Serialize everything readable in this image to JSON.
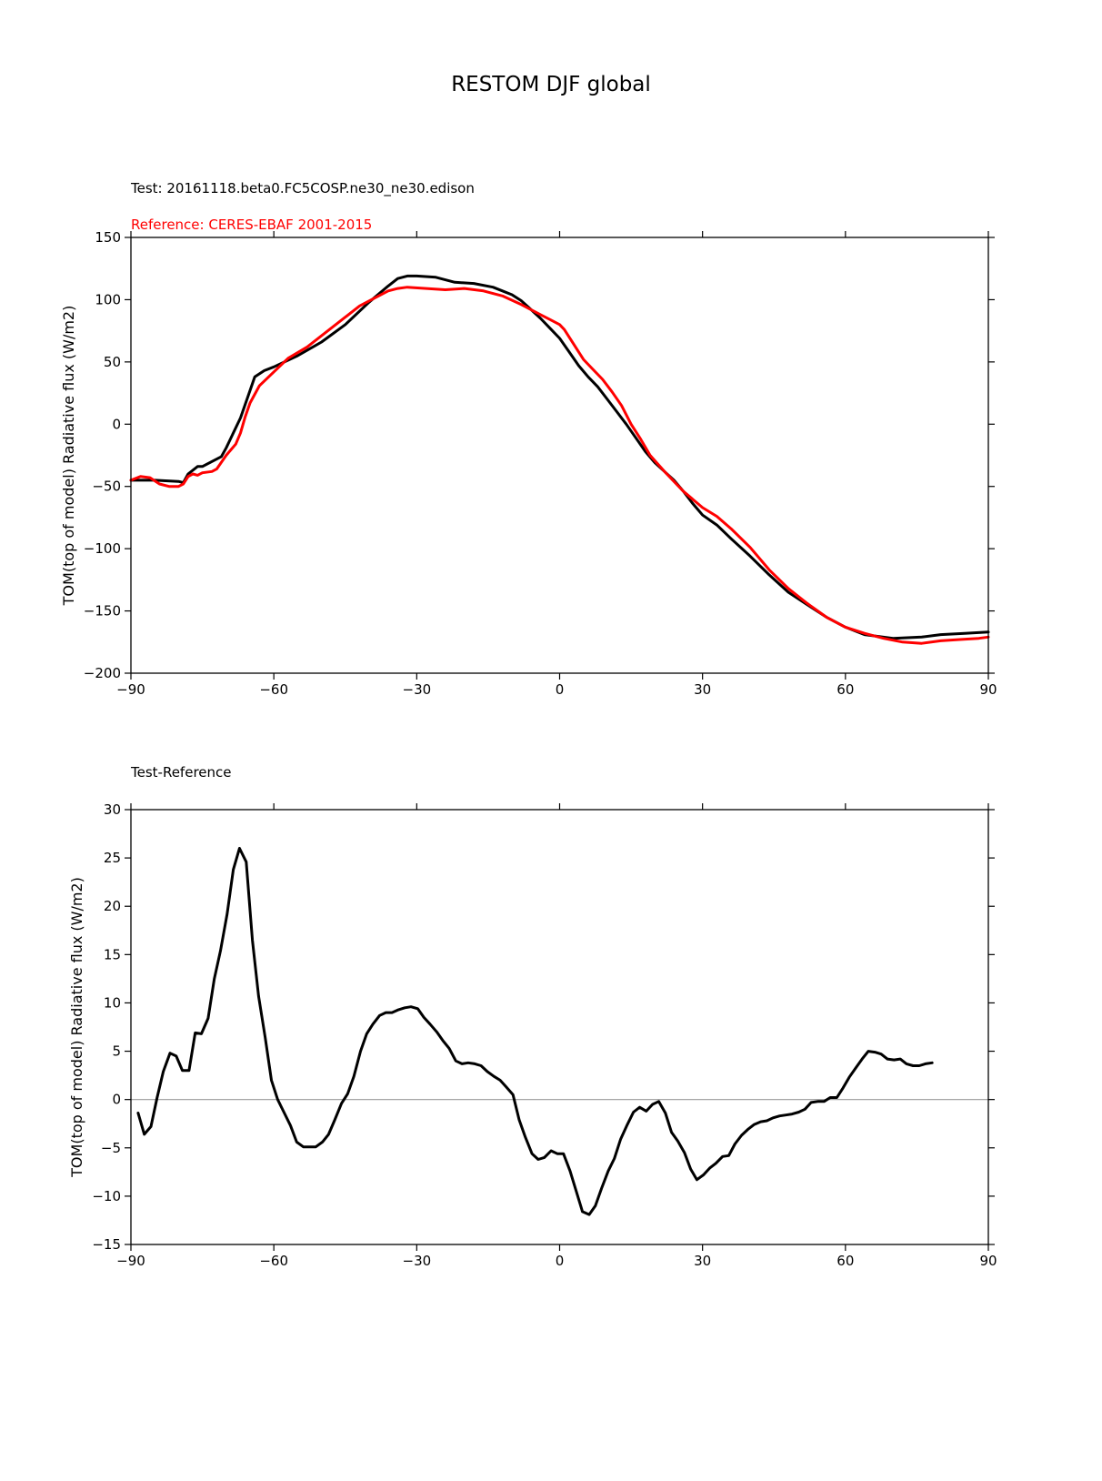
{
  "figure": {
    "title": "RESTOM DJF global"
  },
  "colors": {
    "test": "#000000",
    "reference": "#ff0000",
    "zero_line": "#999999"
  },
  "chart_data": [
    {
      "type": "line",
      "title": "",
      "subtitle_test": "Test: 20161118.beta0.FC5COSP.ne30_ne30.edison",
      "subtitle_reference": "Reference: CERES-EBAF 2001-2015",
      "xlabel": "",
      "ylabel": "TOM(top of model) Radiative flux (W/m2)",
      "xlim": [
        -90,
        90
      ],
      "ylim": [
        -200,
        150
      ],
      "xticks": [
        -90,
        -60,
        -30,
        0,
        30,
        60,
        90
      ],
      "xtick_labels": [
        "−90",
        "−60",
        "−30",
        "0",
        "30",
        "60",
        "90"
      ],
      "yticks": [
        -200,
        -150,
        -100,
        -50,
        0,
        50,
        100,
        150
      ],
      "ytick_labels": [
        "−200",
        "−150",
        "−100",
        "−50",
        "0",
        "50",
        "100",
        "150"
      ],
      "grid": false,
      "series": [
        {
          "color": "#000000",
          "points": [
            [
              -90,
              -45
            ],
            [
              -85,
              -45
            ],
            [
              -80,
              -46
            ],
            [
              -79,
              -47
            ],
            [
              -78,
              -40
            ],
            [
              -76,
              -34
            ],
            [
              -75,
              -34
            ],
            [
              -71,
              -26
            ],
            [
              -70,
              -19
            ],
            [
              -67,
              5
            ],
            [
              -65,
              27
            ],
            [
              -64,
              38
            ],
            [
              -62,
              43
            ],
            [
              -60,
              46
            ],
            [
              -55,
              55
            ],
            [
              -50,
              66
            ],
            [
              -45,
              80
            ],
            [
              -40,
              98
            ],
            [
              -36,
              111
            ],
            [
              -34,
              117
            ],
            [
              -32,
              119
            ],
            [
              -30,
              119
            ],
            [
              -26,
              118
            ],
            [
              -22,
              114
            ],
            [
              -18,
              113
            ],
            [
              -14,
              110
            ],
            [
              -12,
              107
            ],
            [
              -10,
              104
            ],
            [
              -8,
              99
            ],
            [
              -6,
              92
            ],
            [
              -4,
              85
            ],
            [
              -2,
              77
            ],
            [
              0,
              69
            ],
            [
              2,
              58
            ],
            [
              4,
              47
            ],
            [
              6,
              38
            ],
            [
              8,
              30
            ],
            [
              10,
              20
            ],
            [
              12,
              10
            ],
            [
              14,
              0
            ],
            [
              16,
              -11
            ],
            [
              18,
              -22
            ],
            [
              20,
              -31
            ],
            [
              22,
              -38
            ],
            [
              24,
              -45
            ],
            [
              26,
              -54
            ],
            [
              28,
              -64
            ],
            [
              30,
              -73
            ],
            [
              33,
              -81
            ],
            [
              36,
              -92
            ],
            [
              40,
              -106
            ],
            [
              44,
              -121
            ],
            [
              48,
              -135
            ],
            [
              52,
              -145
            ],
            [
              56,
              -155
            ],
            [
              60,
              -163
            ],
            [
              64,
              -169
            ],
            [
              70,
              -172
            ],
            [
              76,
              -171
            ],
            [
              80,
              -169
            ],
            [
              85,
              -168
            ],
            [
              90,
              -167
            ]
          ]
        },
        {
          "color": "#ff0000",
          "points": [
            [
              -90,
              -45
            ],
            [
              -88,
              -42
            ],
            [
              -86,
              -43
            ],
            [
              -84,
              -48
            ],
            [
              -82,
              -50
            ],
            [
              -80,
              -50
            ],
            [
              -79,
              -48
            ],
            [
              -78,
              -42
            ],
            [
              -77,
              -40
            ],
            [
              -76,
              -41
            ],
            [
              -75,
              -39
            ],
            [
              -73,
              -38
            ],
            [
              -72,
              -36
            ],
            [
              -70,
              -25
            ],
            [
              -68,
              -16
            ],
            [
              -67,
              -7
            ],
            [
              -66,
              6
            ],
            [
              -65,
              17
            ],
            [
              -63,
              31
            ],
            [
              -60,
              42
            ],
            [
              -57,
              53
            ],
            [
              -53,
              62
            ],
            [
              -50,
              71
            ],
            [
              -45,
              86
            ],
            [
              -42,
              95
            ],
            [
              -38,
              103
            ],
            [
              -36,
              107
            ],
            [
              -34,
              109
            ],
            [
              -32,
              110
            ],
            [
              -28,
              109
            ],
            [
              -24,
              108
            ],
            [
              -20,
              109
            ],
            [
              -16,
              107
            ],
            [
              -12,
              103
            ],
            [
              -8,
              96
            ],
            [
              -4,
              88
            ],
            [
              -2,
              84
            ],
            [
              0,
              80
            ],
            [
              1,
              76
            ],
            [
              3,
              64
            ],
            [
              5,
              52
            ],
            [
              7,
              44
            ],
            [
              9,
              36
            ],
            [
              11,
              26
            ],
            [
              13,
              15
            ],
            [
              15,
              0
            ],
            [
              17,
              -12
            ],
            [
              19,
              -25
            ],
            [
              22,
              -38
            ],
            [
              26,
              -54
            ],
            [
              30,
              -67
            ],
            [
              33,
              -74
            ],
            [
              36,
              -84
            ],
            [
              40,
              -99
            ],
            [
              44,
              -117
            ],
            [
              48,
              -132
            ],
            [
              52,
              -144
            ],
            [
              56,
              -155
            ],
            [
              60,
              -163
            ],
            [
              64,
              -168
            ],
            [
              68,
              -172
            ],
            [
              72,
              -175
            ],
            [
              76,
              -176
            ],
            [
              80,
              -174
            ],
            [
              84,
              -173
            ],
            [
              88,
              -172
            ],
            [
              90,
              -171
            ]
          ]
        }
      ]
    },
    {
      "type": "line",
      "title": "",
      "subtitle_test": "Test-Reference",
      "xlabel": "",
      "ylabel": "TOM(top of model) Radiative flux (W/m2)",
      "xlim": [
        -90,
        90
      ],
      "ylim": [
        -15,
        30
      ],
      "xticks": [
        -90,
        -60,
        -30,
        0,
        30,
        60,
        90
      ],
      "xtick_labels": [
        "−90",
        "−60",
        "−30",
        "0",
        "30",
        "60",
        "90"
      ],
      "yticks": [
        -15,
        -10,
        -5,
        0,
        5,
        10,
        15,
        20,
        25,
        30
      ],
      "ytick_labels": [
        "−15",
        "−10",
        "−5",
        "0",
        "5",
        "10",
        "15",
        "20",
        "25",
        "30"
      ],
      "grid": false,
      "zero_line": true,
      "series": [
        {
          "color": "#000000",
          "points": [
            [
              -88.5,
              -1.4
            ],
            [
              -87.2,
              -3.6
            ],
            [
              -85.8,
              -2.8
            ],
            [
              -84.5,
              0.2
            ],
            [
              -83.2,
              2.9
            ],
            [
              -81.8,
              4.8
            ],
            [
              -80.5,
              4.5
            ],
            [
              -79.2,
              3
            ],
            [
              -77.8,
              3
            ],
            [
              -76.5,
              6.9
            ],
            [
              -75.2,
              6.8
            ],
            [
              -73.8,
              8.4
            ],
            [
              -72.5,
              12.5
            ],
            [
              -71.2,
              15.4
            ],
            [
              -69.8,
              19.2
            ],
            [
              -68.5,
              23.8
            ],
            [
              -67.2,
              26
            ],
            [
              -65.8,
              24.6
            ],
            [
              -64.5,
              16.5
            ],
            [
              -63.2,
              10.7
            ],
            [
              -61.8,
              6.4
            ],
            [
              -60.5,
              2
            ],
            [
              -59.2,
              0
            ],
            [
              -57.8,
              -1.4
            ],
            [
              -56.5,
              -2.7
            ],
            [
              -55.2,
              -4.4
            ],
            [
              -53.8,
              -4.9
            ],
            [
              -52.5,
              -4.9
            ],
            [
              -51.2,
              -4.9
            ],
            [
              -49.8,
              -4.4
            ],
            [
              -48.5,
              -3.6
            ],
            [
              -47.2,
              -2.1
            ],
            [
              -45.8,
              -0.4
            ],
            [
              -44.5,
              0.6
            ],
            [
              -43.2,
              2.4
            ],
            [
              -41.8,
              5
            ],
            [
              -40.5,
              6.8
            ],
            [
              -39.2,
              7.8
            ],
            [
              -37.8,
              8.7
            ],
            [
              -36.5,
              9
            ],
            [
              -35.2,
              9
            ],
            [
              -33.8,
              9.3
            ],
            [
              -32.5,
              9.5
            ],
            [
              -31.2,
              9.6
            ],
            [
              -29.8,
              9.4
            ],
            [
              -28.5,
              8.5
            ],
            [
              -27.2,
              7.8
            ],
            [
              -25.8,
              7
            ],
            [
              -24.5,
              6.1
            ],
            [
              -23.2,
              5.3
            ],
            [
              -21.8,
              4
            ],
            [
              -20.5,
              3.7
            ],
            [
              -19.2,
              3.8
            ],
            [
              -17.8,
              3.7
            ],
            [
              -16.5,
              3.5
            ],
            [
              -15.2,
              2.9
            ],
            [
              -13.8,
              2.4
            ],
            [
              -12.5,
              2
            ],
            [
              -11.2,
              1.3
            ],
            [
              -9.8,
              0.5
            ],
            [
              -8.5,
              -2.1
            ],
            [
              -7.2,
              -3.9
            ],
            [
              -5.8,
              -5.6
            ],
            [
              -4.5,
              -6.2
            ],
            [
              -3.2,
              -6
            ],
            [
              -1.8,
              -5.3
            ],
            [
              -0.5,
              -5.6
            ],
            [
              0.8,
              -5.6
            ],
            [
              2.2,
              -7.4
            ],
            [
              3.5,
              -9.5
            ],
            [
              4.8,
              -11.6
            ],
            [
              6.2,
              -11.9
            ],
            [
              7.5,
              -11
            ],
            [
              8.8,
              -9.2
            ],
            [
              10.2,
              -7.4
            ],
            [
              11.5,
              -6.1
            ],
            [
              12.8,
              -4.1
            ],
            [
              14.2,
              -2.6
            ],
            [
              15.5,
              -1.3
            ],
            [
              16.8,
              -0.8
            ],
            [
              18.2,
              -1.2
            ],
            [
              19.5,
              -0.5
            ],
            [
              20.8,
              -0.2
            ],
            [
              22.2,
              -1.4
            ],
            [
              23.5,
              -3.4
            ],
            [
              24.8,
              -4.3
            ],
            [
              26.2,
              -5.5
            ],
            [
              27.5,
              -7.2
            ],
            [
              28.8,
              -8.3
            ],
            [
              30.2,
              -7.8
            ],
            [
              31.5,
              -7.1
            ],
            [
              32.8,
              -6.6
            ],
            [
              34.2,
              -5.9
            ],
            [
              35.5,
              -5.8
            ],
            [
              36.8,
              -4.6
            ],
            [
              38.2,
              -3.7
            ],
            [
              39.5,
              -3.1
            ],
            [
              40.8,
              -2.6
            ],
            [
              42.2,
              -2.3
            ],
            [
              43.5,
              -2.2
            ],
            [
              44.8,
              -1.9
            ],
            [
              46.2,
              -1.7
            ],
            [
              47.5,
              -1.6
            ],
            [
              48.8,
              -1.5
            ],
            [
              50.2,
              -1.3
            ],
            [
              51.5,
              -1
            ],
            [
              52.8,
              -0.3
            ],
            [
              54.2,
              -0.2
            ],
            [
              55.5,
              -0.2
            ],
            [
              56.8,
              0.2
            ],
            [
              58.2,
              0.2
            ],
            [
              59.5,
              1.2
            ],
            [
              60.8,
              2.3
            ],
            [
              62.2,
              3.3
            ],
            [
              63.5,
              4.2
            ],
            [
              64.8,
              5
            ],
            [
              66.2,
              4.9
            ],
            [
              67.5,
              4.7
            ],
            [
              68.8,
              4.2
            ],
            [
              70.2,
              4.1
            ],
            [
              71.5,
              4.2
            ],
            [
              72.8,
              3.7
            ],
            [
              74.2,
              3.5
            ],
            [
              75.5,
              3.5
            ],
            [
              76.8,
              3.7
            ],
            [
              78.2,
              3.8
            ]
          ]
        }
      ]
    }
  ]
}
